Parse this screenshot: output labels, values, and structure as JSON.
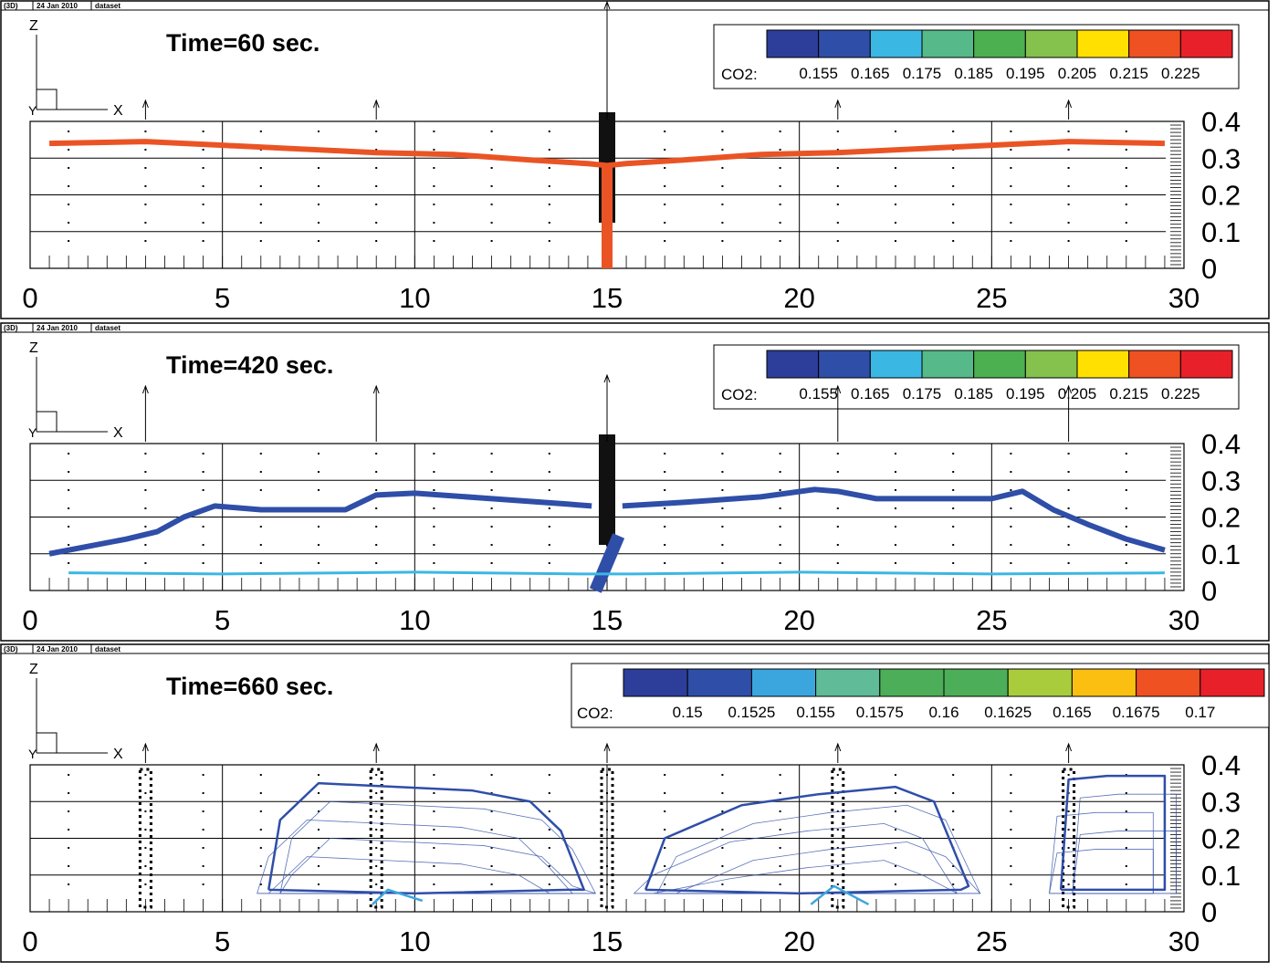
{
  "header_strip": [
    "(3D)",
    "24 Jan 2010",
    "dataset"
  ],
  "panels": [
    {
      "title": "Time=60 sec.",
      "axis_labels": {
        "z": "Z",
        "y": "Y",
        "x": "X"
      },
      "legend": {
        "label": "CO2:",
        "colors": [
          "#2c3e9a",
          "#2f4ea8",
          "#3bb7e3",
          "#55b98a",
          "#4caf50",
          "#84c14d",
          "#ffe000",
          "#ef5123",
          "#e8202a"
        ],
        "values": [
          "0.155",
          "0.165",
          "0.175",
          "0.185",
          "0.195",
          "0.205",
          "0.215",
          "0.225"
        ]
      }
    },
    {
      "title": "Time=420 sec.",
      "axis_labels": {
        "z": "Z",
        "y": "Y",
        "x": "X"
      },
      "legend": {
        "label": "CO2:",
        "colors": [
          "#2c3e9a",
          "#2f4ea8",
          "#3bb7e3",
          "#55b98a",
          "#4caf50",
          "#84c14d",
          "#ffe000",
          "#ef5123",
          "#e8202a"
        ],
        "values": [
          "0.155",
          "0.165",
          "0.175",
          "0.185",
          "0.195",
          "0.205",
          "0.215",
          "0.225"
        ]
      }
    },
    {
      "title": "Time=660 sec.",
      "axis_labels": {
        "z": "Z",
        "y": "Y",
        "x": "X"
      },
      "legend": {
        "label": "CO2:",
        "colors": [
          "#2c3e9a",
          "#2f4ea8",
          "#3ba6de",
          "#5fbb98",
          "#4cae58",
          "#4cae58",
          "#a8cc3c",
          "#fbbf12",
          "#ef5123",
          "#e8202a"
        ],
        "values": [
          "0.15",
          "0.1525",
          "0.155",
          "0.1575",
          "0.16",
          "0.1625",
          "0.165",
          "0.1675",
          "0.17"
        ]
      }
    }
  ],
  "chart_data": [
    {
      "type": "line",
      "title": "Time=60 sec.",
      "x_ticks": [
        "0",
        "5",
        "10",
        "15",
        "20",
        "25",
        "30"
      ],
      "y_ticks": [
        "0",
        "0.1",
        "0.2",
        "0.3",
        "0.4"
      ],
      "xlim": [
        0,
        30
      ],
      "ylim": [
        0,
        0.4
      ],
      "grid": true,
      "series": [
        {
          "color": "#ea5425",
          "x": [
            0.5,
            3,
            5,
            7,
            9,
            11,
            13,
            14.5,
            15,
            15.5,
            17,
            19,
            21,
            23,
            25,
            27,
            29.5
          ],
          "y": [
            0.34,
            0.345,
            0.335,
            0.325,
            0.315,
            0.31,
            0.295,
            0.285,
            0.28,
            0.285,
            0.295,
            0.31,
            0.315,
            0.325,
            0.335,
            0.345,
            0.34
          ]
        },
        {
          "color": "#ea5425",
          "x": [
            15,
            15
          ],
          "y": [
            0.0,
            0.28
          ]
        }
      ]
    },
    {
      "type": "line",
      "title": "Time=420 sec.",
      "x_ticks": [
        "0",
        "5",
        "10",
        "15",
        "20",
        "25",
        "30"
      ],
      "y_ticks": [
        "0",
        "0.1",
        "0.2",
        "0.3",
        "0.4"
      ],
      "xlim": [
        0,
        30
      ],
      "ylim": [
        0,
        0.4
      ],
      "grid": true,
      "series": [
        {
          "color": "#2f4ea8",
          "x": [
            0.5,
            1.5,
            2.5,
            3.3,
            4.0,
            4.8,
            6.0,
            8.2,
            9.0,
            10.0,
            12.0,
            14.0,
            14.6
          ],
          "y": [
            0.1,
            0.12,
            0.14,
            0.16,
            0.2,
            0.23,
            0.22,
            0.22,
            0.26,
            0.265,
            0.25,
            0.235,
            0.23
          ]
        },
        {
          "color": "#2f4ea8",
          "x": [
            15.4,
            17.0,
            19.0,
            20.4,
            21.0,
            22.0,
            25.0,
            25.8,
            26.6,
            27.5,
            28.5,
            29.5
          ],
          "y": [
            0.23,
            0.24,
            0.255,
            0.275,
            0.27,
            0.25,
            0.25,
            0.27,
            0.22,
            0.18,
            0.14,
            0.11
          ]
        },
        {
          "color": "#2f4ea8",
          "x": [
            14.7,
            15.3
          ],
          "y": [
            0.0,
            0.0
          ]
        },
        {
          "color": "#3bb7e3",
          "x": [
            1.0,
            5.0,
            10.0,
            14.3,
            15.7,
            20.0,
            25.0,
            29.5
          ],
          "y": [
            0.048,
            0.045,
            0.05,
            0.045,
            0.045,
            0.05,
            0.045,
            0.048
          ]
        }
      ]
    },
    {
      "type": "line",
      "title": "Time=660 sec.",
      "x_ticks": [
        "0",
        "5",
        "10",
        "15",
        "20",
        "25",
        "30"
      ],
      "y_ticks": [
        "0",
        "0.1",
        "0.2",
        "0.3",
        "0.4"
      ],
      "xlim": [
        0,
        30
      ],
      "ylim": [
        0,
        0.4
      ],
      "grid": true,
      "series": [
        {
          "color": "#2f4ea8",
          "x": [
            6.2,
            6.5,
            7.5,
            9.5,
            11.5,
            13.0,
            13.8,
            14.4,
            14.0,
            10.0,
            6.2
          ],
          "y": [
            0.06,
            0.25,
            0.35,
            0.34,
            0.33,
            0.3,
            0.22,
            0.06,
            0.06,
            0.05,
            0.06
          ]
        },
        {
          "color": "#2f4ea8",
          "x": [
            16.0,
            16.5,
            18.5,
            20.5,
            22.5,
            23.5,
            24.4,
            24.2,
            20.0,
            16.0
          ],
          "y": [
            0.06,
            0.2,
            0.29,
            0.32,
            0.34,
            0.3,
            0.07,
            0.06,
            0.05,
            0.06
          ]
        },
        {
          "color": "#2f4ea8",
          "x": [
            26.8,
            27.0,
            28.0,
            29.5,
            29.5,
            26.8
          ],
          "y": [
            0.06,
            0.36,
            0.37,
            0.37,
            0.06,
            0.06
          ]
        },
        {
          "color": "#3ba6de",
          "x": [
            8.9,
            9.3,
            10.2
          ],
          "y": [
            0.02,
            0.06,
            0.03
          ]
        },
        {
          "color": "#3ba6de",
          "x": [
            20.3,
            20.9,
            21.8
          ],
          "y": [
            0.02,
            0.07,
            0.02
          ]
        }
      ]
    }
  ]
}
